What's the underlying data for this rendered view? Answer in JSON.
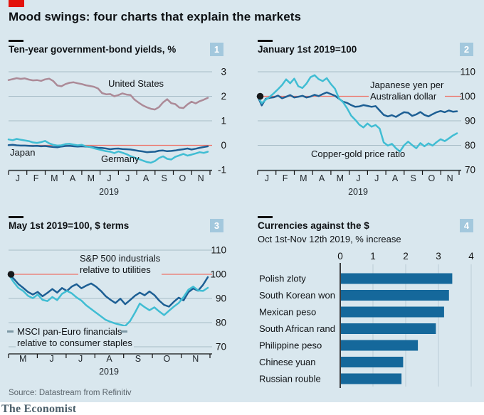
{
  "page": {
    "title": "Mood swings: four charts that explain the markets",
    "source": "Source: Datastream from Refinitiv",
    "brand": "The Economist"
  },
  "colors": {
    "panel_bg": "#d9e7ee",
    "economist_red": "#e3120b",
    "ref_line_red": "#ed7267",
    "gridline": "#a7bcc7",
    "axis_dark": "#121212",
    "dark_blue": "#1d5f94",
    "cyan": "#40bdd3",
    "mauve": "#ac8a97",
    "bar_blue": "#15689b",
    "bar_grid": "#c0d2da",
    "badge_bg": "#a3c8dd",
    "badge_text": "#ffffff"
  },
  "chart_data": [
    {
      "type": "line",
      "title": "Ten-year government-bond yields, %",
      "badge": "1",
      "x_months": [
        "J",
        "F",
        "M",
        "A",
        "M",
        "J",
        "J",
        "A",
        "S",
        "O",
        "N"
      ],
      "x_year": "2019",
      "ylim": [
        -1,
        3
      ],
      "ref_line": 0,
      "y_ticks": [
        {
          "v": 3,
          "label": "3"
        },
        {
          "v": 2,
          "label": "2"
        },
        {
          "v": 1,
          "label": "1"
        },
        {
          "v": 0,
          "label": "0"
        },
        {
          "v": -1,
          "label": "-1"
        }
      ],
      "annotations": {
        "united_states": "United States",
        "japan": "Japan",
        "germany": "Germany"
      },
      "series": [
        {
          "name": "United States",
          "color": "mauve",
          "values": [
            2.66,
            2.7,
            2.74,
            2.71,
            2.73,
            2.68,
            2.65,
            2.66,
            2.63,
            2.69,
            2.72,
            2.62,
            2.44,
            2.41,
            2.5,
            2.55,
            2.57,
            2.53,
            2.5,
            2.45,
            2.42,
            2.39,
            2.32,
            2.13,
            2.08,
            2.09,
            2.0,
            2.05,
            2.12,
            2.07,
            2.05,
            1.86,
            1.74,
            1.63,
            1.55,
            1.49,
            1.46,
            1.56,
            1.75,
            1.88,
            1.72,
            1.68,
            1.54,
            1.52,
            1.67,
            1.78,
            1.71,
            1.8,
            1.86,
            1.94
          ]
        },
        {
          "name": "Japan",
          "color": "dark_blue",
          "values": [
            0.01,
            0.02,
            0.0,
            -0.01,
            -0.01,
            -0.02,
            -0.03,
            -0.02,
            -0.04,
            -0.03,
            -0.05,
            -0.07,
            -0.08,
            -0.05,
            -0.03,
            -0.02,
            -0.04,
            -0.05,
            -0.04,
            -0.05,
            -0.06,
            -0.08,
            -0.1,
            -0.11,
            -0.13,
            -0.16,
            -0.14,
            -0.13,
            -0.15,
            -0.16,
            -0.17,
            -0.2,
            -0.23,
            -0.25,
            -0.28,
            -0.27,
            -0.26,
            -0.22,
            -0.21,
            -0.24,
            -0.23,
            -0.21,
            -0.18,
            -0.16,
            -0.13,
            -0.17,
            -0.14,
            -0.1,
            -0.07,
            -0.04
          ]
        },
        {
          "name": "Germany",
          "color": "cyan",
          "values": [
            0.24,
            0.21,
            0.26,
            0.23,
            0.2,
            0.17,
            0.12,
            0.1,
            0.13,
            0.18,
            0.08,
            0.02,
            -0.01,
            0.0,
            0.05,
            0.06,
            0.03,
            0.0,
            0.02,
            -0.04,
            -0.07,
            -0.12,
            -0.16,
            -0.2,
            -0.24,
            -0.26,
            -0.32,
            -0.25,
            -0.3,
            -0.36,
            -0.44,
            -0.5,
            -0.56,
            -0.62,
            -0.68,
            -0.71,
            -0.64,
            -0.52,
            -0.45,
            -0.55,
            -0.58,
            -0.47,
            -0.41,
            -0.35,
            -0.42,
            -0.38,
            -0.33,
            -0.28,
            -0.31,
            -0.26
          ]
        }
      ]
    },
    {
      "type": "line",
      "title": "January 1st 2019=100",
      "badge": "2",
      "x_months": [
        "J",
        "F",
        "M",
        "A",
        "M",
        "J",
        "J",
        "A",
        "S",
        "O",
        "N"
      ],
      "x_year": "2019",
      "ylim": [
        70,
        110
      ],
      "ref_line": 100,
      "start_dot": 100,
      "y_ticks": [
        {
          "v": 110,
          "label": "110"
        },
        {
          "v": 100,
          "label": "100"
        },
        {
          "v": 90,
          "label": "90"
        },
        {
          "v": 80,
          "label": "80"
        },
        {
          "v": 70,
          "label": "70"
        }
      ],
      "annotations": {
        "yen": "Japanese yen per\nAustralian dollar",
        "copper_gold": "Copper-gold price ratio"
      },
      "series": [
        {
          "name": "Japanese yen per Australian dollar",
          "color": "dark_blue",
          "values": [
            100,
            96.3,
            99.0,
            99.4,
            99.6,
            100.3,
            99.2,
            99.8,
            100.5,
            99.5,
            99.8,
            100.2,
            99.5,
            99.9,
            100.6,
            100.1,
            100.9,
            101.6,
            100.9,
            100.2,
            99.0,
            97.8,
            97.3,
            96.4,
            95.7,
            95.9,
            96.4,
            96.1,
            95.7,
            96.0,
            94.2,
            92.4,
            91.8,
            92.3,
            91.6,
            92.6,
            93.5,
            93.3,
            92.0,
            92.6,
            93.6,
            92.4,
            91.8,
            92.7,
            93.5,
            94.0,
            93.5,
            94.2,
            93.7,
            93.9
          ]
        },
        {
          "name": "Copper-gold price ratio",
          "color": "cyan",
          "values": [
            100,
            97.2,
            98.6,
            99.8,
            101.3,
            102.9,
            104.6,
            106.9,
            105.3,
            107.2,
            104.1,
            103.4,
            105.2,
            107.8,
            108.6,
            107.0,
            106.2,
            107.4,
            105.0,
            103.1,
            99.1,
            97.6,
            95.1,
            92.1,
            90.4,
            88.4,
            87.3,
            88.9,
            87.6,
            88.3,
            86.8,
            81.2,
            79.9,
            80.6,
            78.8,
            77.5,
            80.0,
            81.5,
            80.1,
            78.8,
            80.9,
            79.6,
            80.8,
            79.9,
            81.3,
            82.5,
            81.7,
            82.8,
            84.0,
            84.9
          ]
        }
      ]
    },
    {
      "type": "line",
      "title": "May 1st 2019=100, $ terms",
      "badge": "3",
      "x_months": [
        "M",
        "J",
        "J",
        "A",
        "S",
        "O",
        "N"
      ],
      "x_year": "2019",
      "ylim": [
        70,
        110
      ],
      "ref_line": 100,
      "start_dot": 100,
      "y_ticks": [
        {
          "v": 110,
          "label": "110"
        },
        {
          "v": 100,
          "label": "100"
        },
        {
          "v": 90,
          "label": "90"
        },
        {
          "v": 80,
          "label": "80"
        },
        {
          "v": 70,
          "label": "70"
        }
      ],
      "annotations": {
        "sp500": "S&P 500 industrials\nrelative to utilities",
        "msci": "MSCI pan-Euro financials\nrelative to consumer staples"
      },
      "series": [
        {
          "name": "S&P 500 industrials relative to utilities",
          "color": "dark_blue",
          "values": [
            100,
            98.3,
            96.0,
            94.4,
            92.7,
            91.6,
            92.7,
            90.9,
            92.3,
            93.9,
            92.4,
            94.3,
            93.1,
            94.9,
            95.9,
            94.2,
            95.3,
            96.2,
            94.9,
            93.1,
            90.9,
            89.4,
            88.1,
            89.9,
            87.6,
            89.3,
            91.1,
            92.4,
            91.3,
            92.9,
            91.4,
            89.1,
            87.3,
            86.6,
            88.6,
            90.3,
            89.2,
            92.6,
            94.1,
            93.2,
            95.6,
            98.8
          ]
        },
        {
          "name": "MSCI pan-Euro financials relative to consumer staples",
          "color": "cyan",
          "values": [
            100,
            96.9,
            94.4,
            93.1,
            91.1,
            90.1,
            91.6,
            89.4,
            88.9,
            90.6,
            89.3,
            91.9,
            93.1,
            92.1,
            90.4,
            89.1,
            87.1,
            85.6,
            84.1,
            82.6,
            81.1,
            80.3,
            79.6,
            79.1,
            78.6,
            80.6,
            84.1,
            87.9,
            86.4,
            85.1,
            86.3,
            84.6,
            83.1,
            84.9,
            86.6,
            88.1,
            90.6,
            93.6,
            94.9,
            93.3,
            93.1,
            94.4
          ]
        }
      ]
    },
    {
      "type": "bar",
      "title": "Currencies against the $",
      "subtitle": "Oct 1st-Nov 12th 2019, % increase",
      "badge": "4",
      "categories": [
        "Polish zloty",
        "South Korean won",
        "Mexican peso",
        "South African rand",
        "Philippine peso",
        "Chinese yuan",
        "Russian rouble"
      ],
      "values": [
        3.4,
        3.3,
        3.15,
        2.9,
        2.35,
        1.9,
        1.85
      ],
      "x_ticks": [
        "0",
        "1",
        "2",
        "3",
        "4"
      ],
      "xlim": [
        0,
        4
      ]
    }
  ]
}
